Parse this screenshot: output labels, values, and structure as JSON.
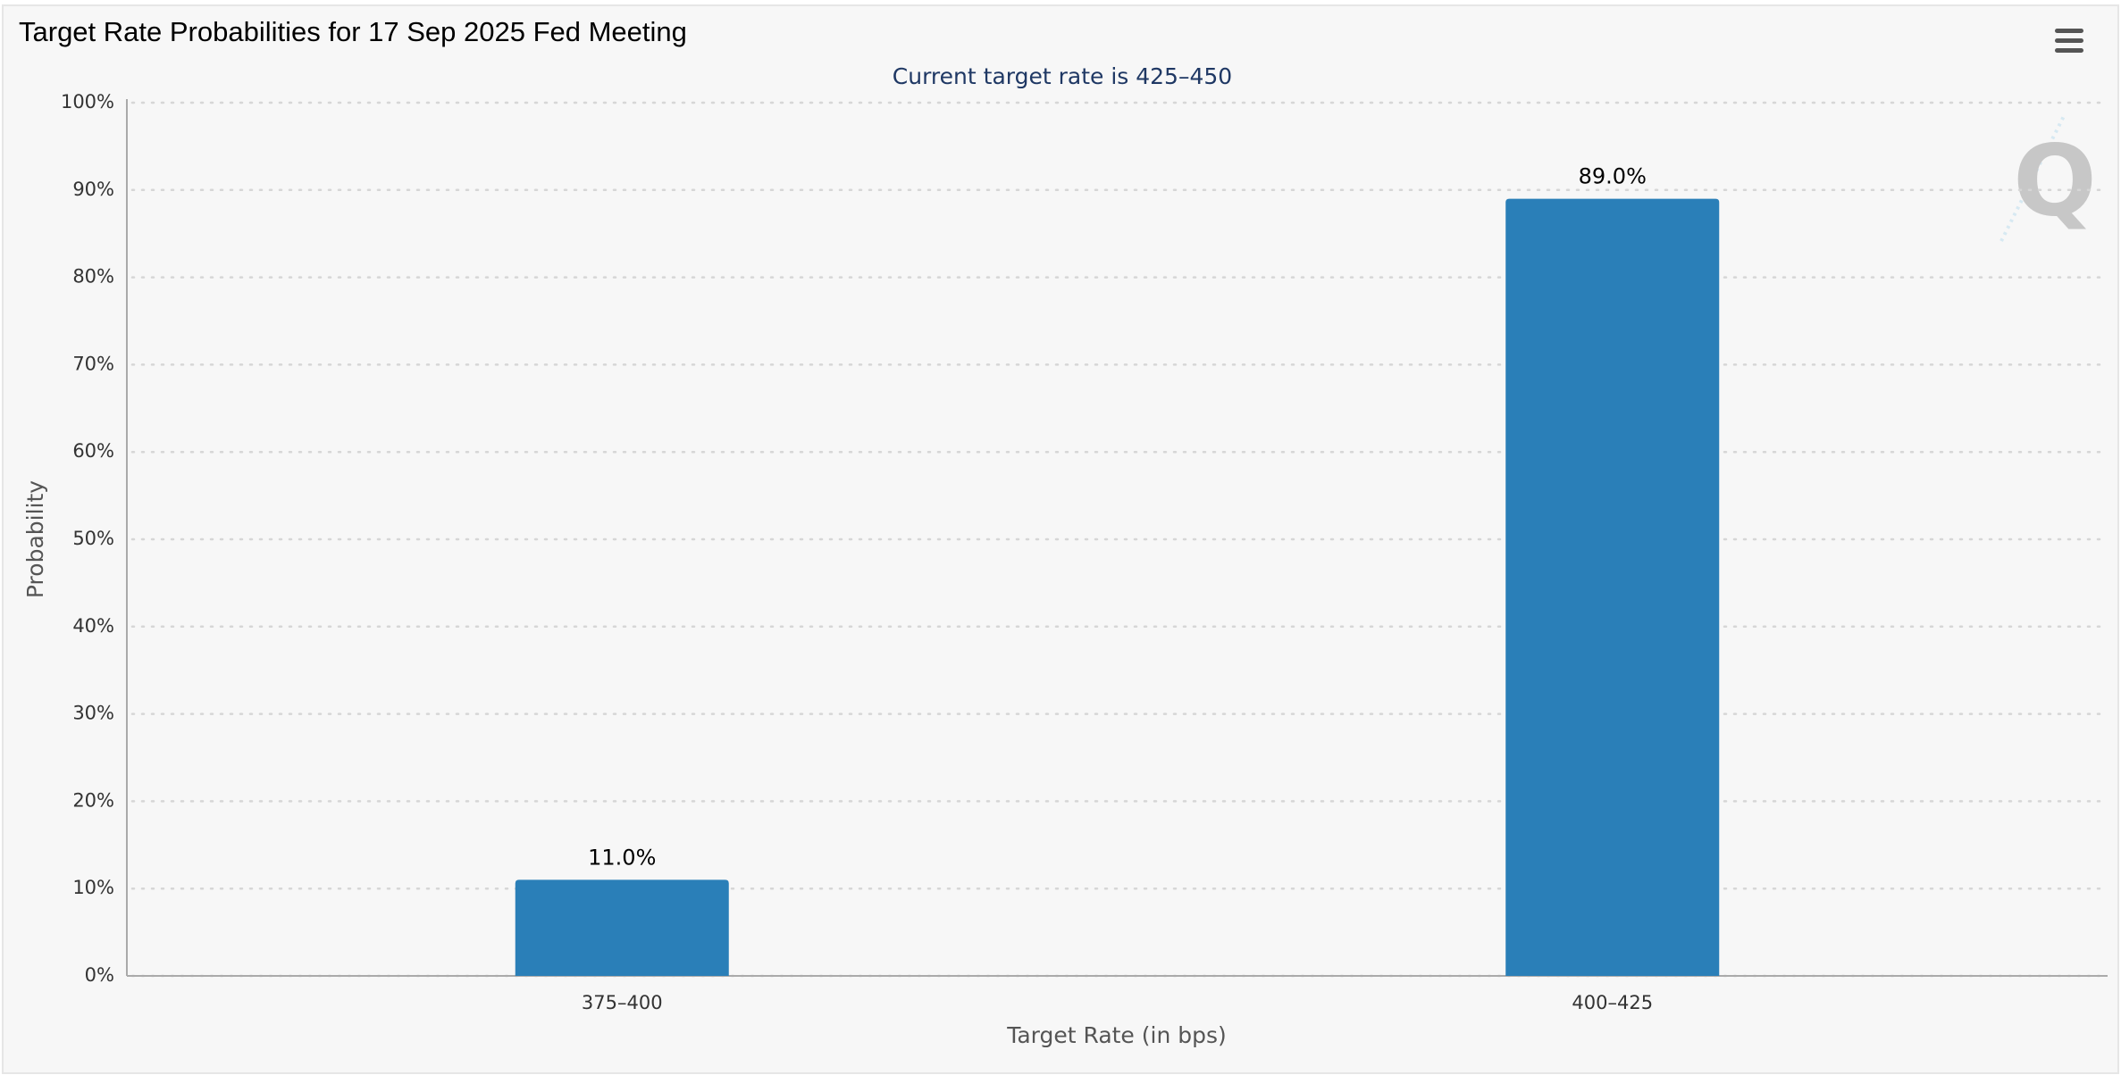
{
  "chart_data": {
    "type": "bar",
    "title": "Target Rate Probabilities for 17 Sep 2025 Fed Meeting",
    "subtitle": "Current target rate is 425–450",
    "x_label": "Target Rate (in bps)",
    "y_label": "Probability",
    "categories": [
      "375–400",
      "400–425"
    ],
    "values": [
      11.0,
      89.0
    ],
    "value_labels": [
      "11.0%",
      "89.0%"
    ],
    "color": "#2a7fb8",
    "ylim": [
      0,
      100
    ],
    "yticks": [
      {
        "value": 0,
        "label": "0%"
      },
      {
        "value": 10,
        "label": "10%"
      },
      {
        "value": 20,
        "label": "20%"
      },
      {
        "value": 30,
        "label": "30%"
      },
      {
        "value": 40,
        "label": "40%"
      },
      {
        "value": 50,
        "label": "50%"
      },
      {
        "value": 60,
        "label": "60%"
      },
      {
        "value": 70,
        "label": "70%"
      },
      {
        "value": 80,
        "label": "80%"
      },
      {
        "value": 90,
        "label": "90%"
      },
      {
        "value": 100,
        "label": "100%"
      }
    ],
    "grid": true
  }
}
